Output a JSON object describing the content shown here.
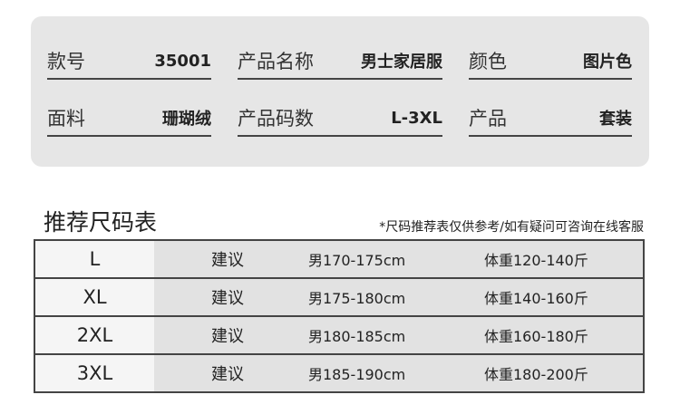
{
  "info": [
    {
      "label": "款号",
      "value": "35001"
    },
    {
      "label": "产品名称",
      "value": "男士家居服"
    },
    {
      "label": "颜色",
      "value": "图片色"
    },
    {
      "label": "面料",
      "value": "珊瑚绒"
    },
    {
      "label": "产品码数",
      "value": "L-3XL"
    },
    {
      "label": "产品",
      "value": "套装"
    }
  ],
  "size_chart": {
    "title": "推荐尺码表",
    "note": "*尺码推荐表仅供参考/如有疑问可咨询在线客服",
    "rows": [
      {
        "size": "L",
        "suggest": "建议",
        "height": "男170-175cm",
        "weight": "体重120-140斤"
      },
      {
        "size": "XL",
        "suggest": "建议",
        "height": "男175-180cm",
        "weight": "体重140-160斤"
      },
      {
        "size": "2XL",
        "suggest": "建议",
        "height": "男180-185cm",
        "weight": "体重160-180斤"
      },
      {
        "size": "3XL",
        "suggest": "建议",
        "height": "男185-190cm",
        "weight": "体重180-200斤"
      }
    ]
  }
}
